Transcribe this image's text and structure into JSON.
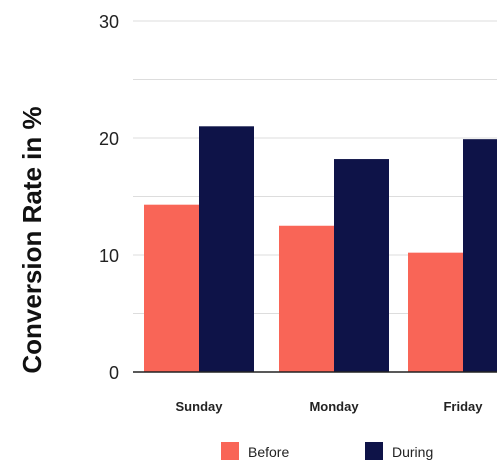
{
  "chart_data": {
    "type": "bar",
    "ylabel": "Conversion Rate in %",
    "categories": [
      "Sunday",
      "Monday",
      "Friday"
    ],
    "series": [
      {
        "name": "Before",
        "values": [
          14.3,
          12.5,
          10.2
        ]
      },
      {
        "name": "During",
        "values": [
          21.0,
          18.2,
          19.9
        ]
      }
    ],
    "y_ticks": [
      "0",
      "10",
      "20",
      "30"
    ],
    "ylim": [
      0,
      30
    ],
    "grid": true,
    "legend_position": "bottom",
    "colors": {
      "Before": "#f96557",
      "During": "#0e1348"
    }
  }
}
